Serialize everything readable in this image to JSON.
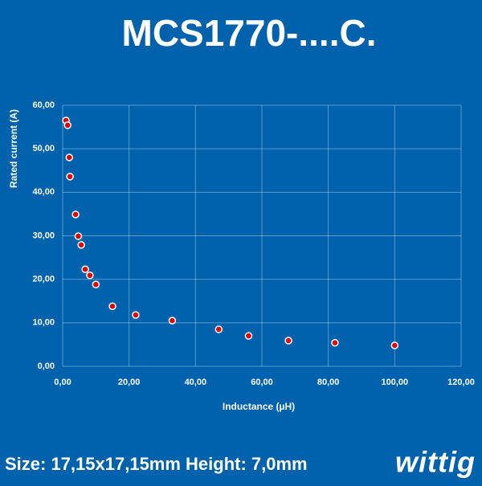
{
  "chart_data": {
    "type": "scatter",
    "title": "MCS1770-....C.",
    "x_label": "Inductance (µH)",
    "y_label": "Rated current (A)",
    "x": [
      1.0,
      1.5,
      2.0,
      2.2,
      3.9,
      4.7,
      5.6,
      6.8,
      8.2,
      10,
      15,
      22,
      33,
      47,
      56,
      68,
      82,
      100
    ],
    "series": [
      {
        "name": "Rated current",
        "color": "#e00000",
        "values": [
          56.5,
          55.4,
          48.0,
          43.6,
          34.9,
          29.9,
          27.9,
          22.3,
          20.9,
          18.8,
          13.8,
          11.8,
          10.5,
          8.5,
          7.0,
          5.9,
          5.4,
          4.8
        ]
      }
    ],
    "xlim": [
      0,
      120
    ],
    "xticks": [
      {
        "value": 0,
        "label": "0,00"
      },
      {
        "value": 20,
        "label": "20,00"
      },
      {
        "value": 40,
        "label": "40,00"
      },
      {
        "value": 60,
        "label": "60,00"
      },
      {
        "value": 80,
        "label": "80,00"
      },
      {
        "value": 100,
        "label": "100,00"
      },
      {
        "value": 120,
        "label": "120,00"
      }
    ],
    "ylim": [
      0,
      60
    ],
    "yticks": [
      {
        "value": 0,
        "label": "0,00"
      },
      {
        "value": 10,
        "label": "10,00"
      },
      {
        "value": 20,
        "label": "20,00"
      },
      {
        "value": 30,
        "label": "30,00"
      },
      {
        "value": 40,
        "label": "40,00"
      },
      {
        "value": 50,
        "label": "50,00"
      },
      {
        "value": 60,
        "label": "60,00"
      }
    ],
    "grid": true
  },
  "footer": {
    "text": "Size: 17,15x17,15mm Height: 7,0mm",
    "logo": "wittig"
  }
}
